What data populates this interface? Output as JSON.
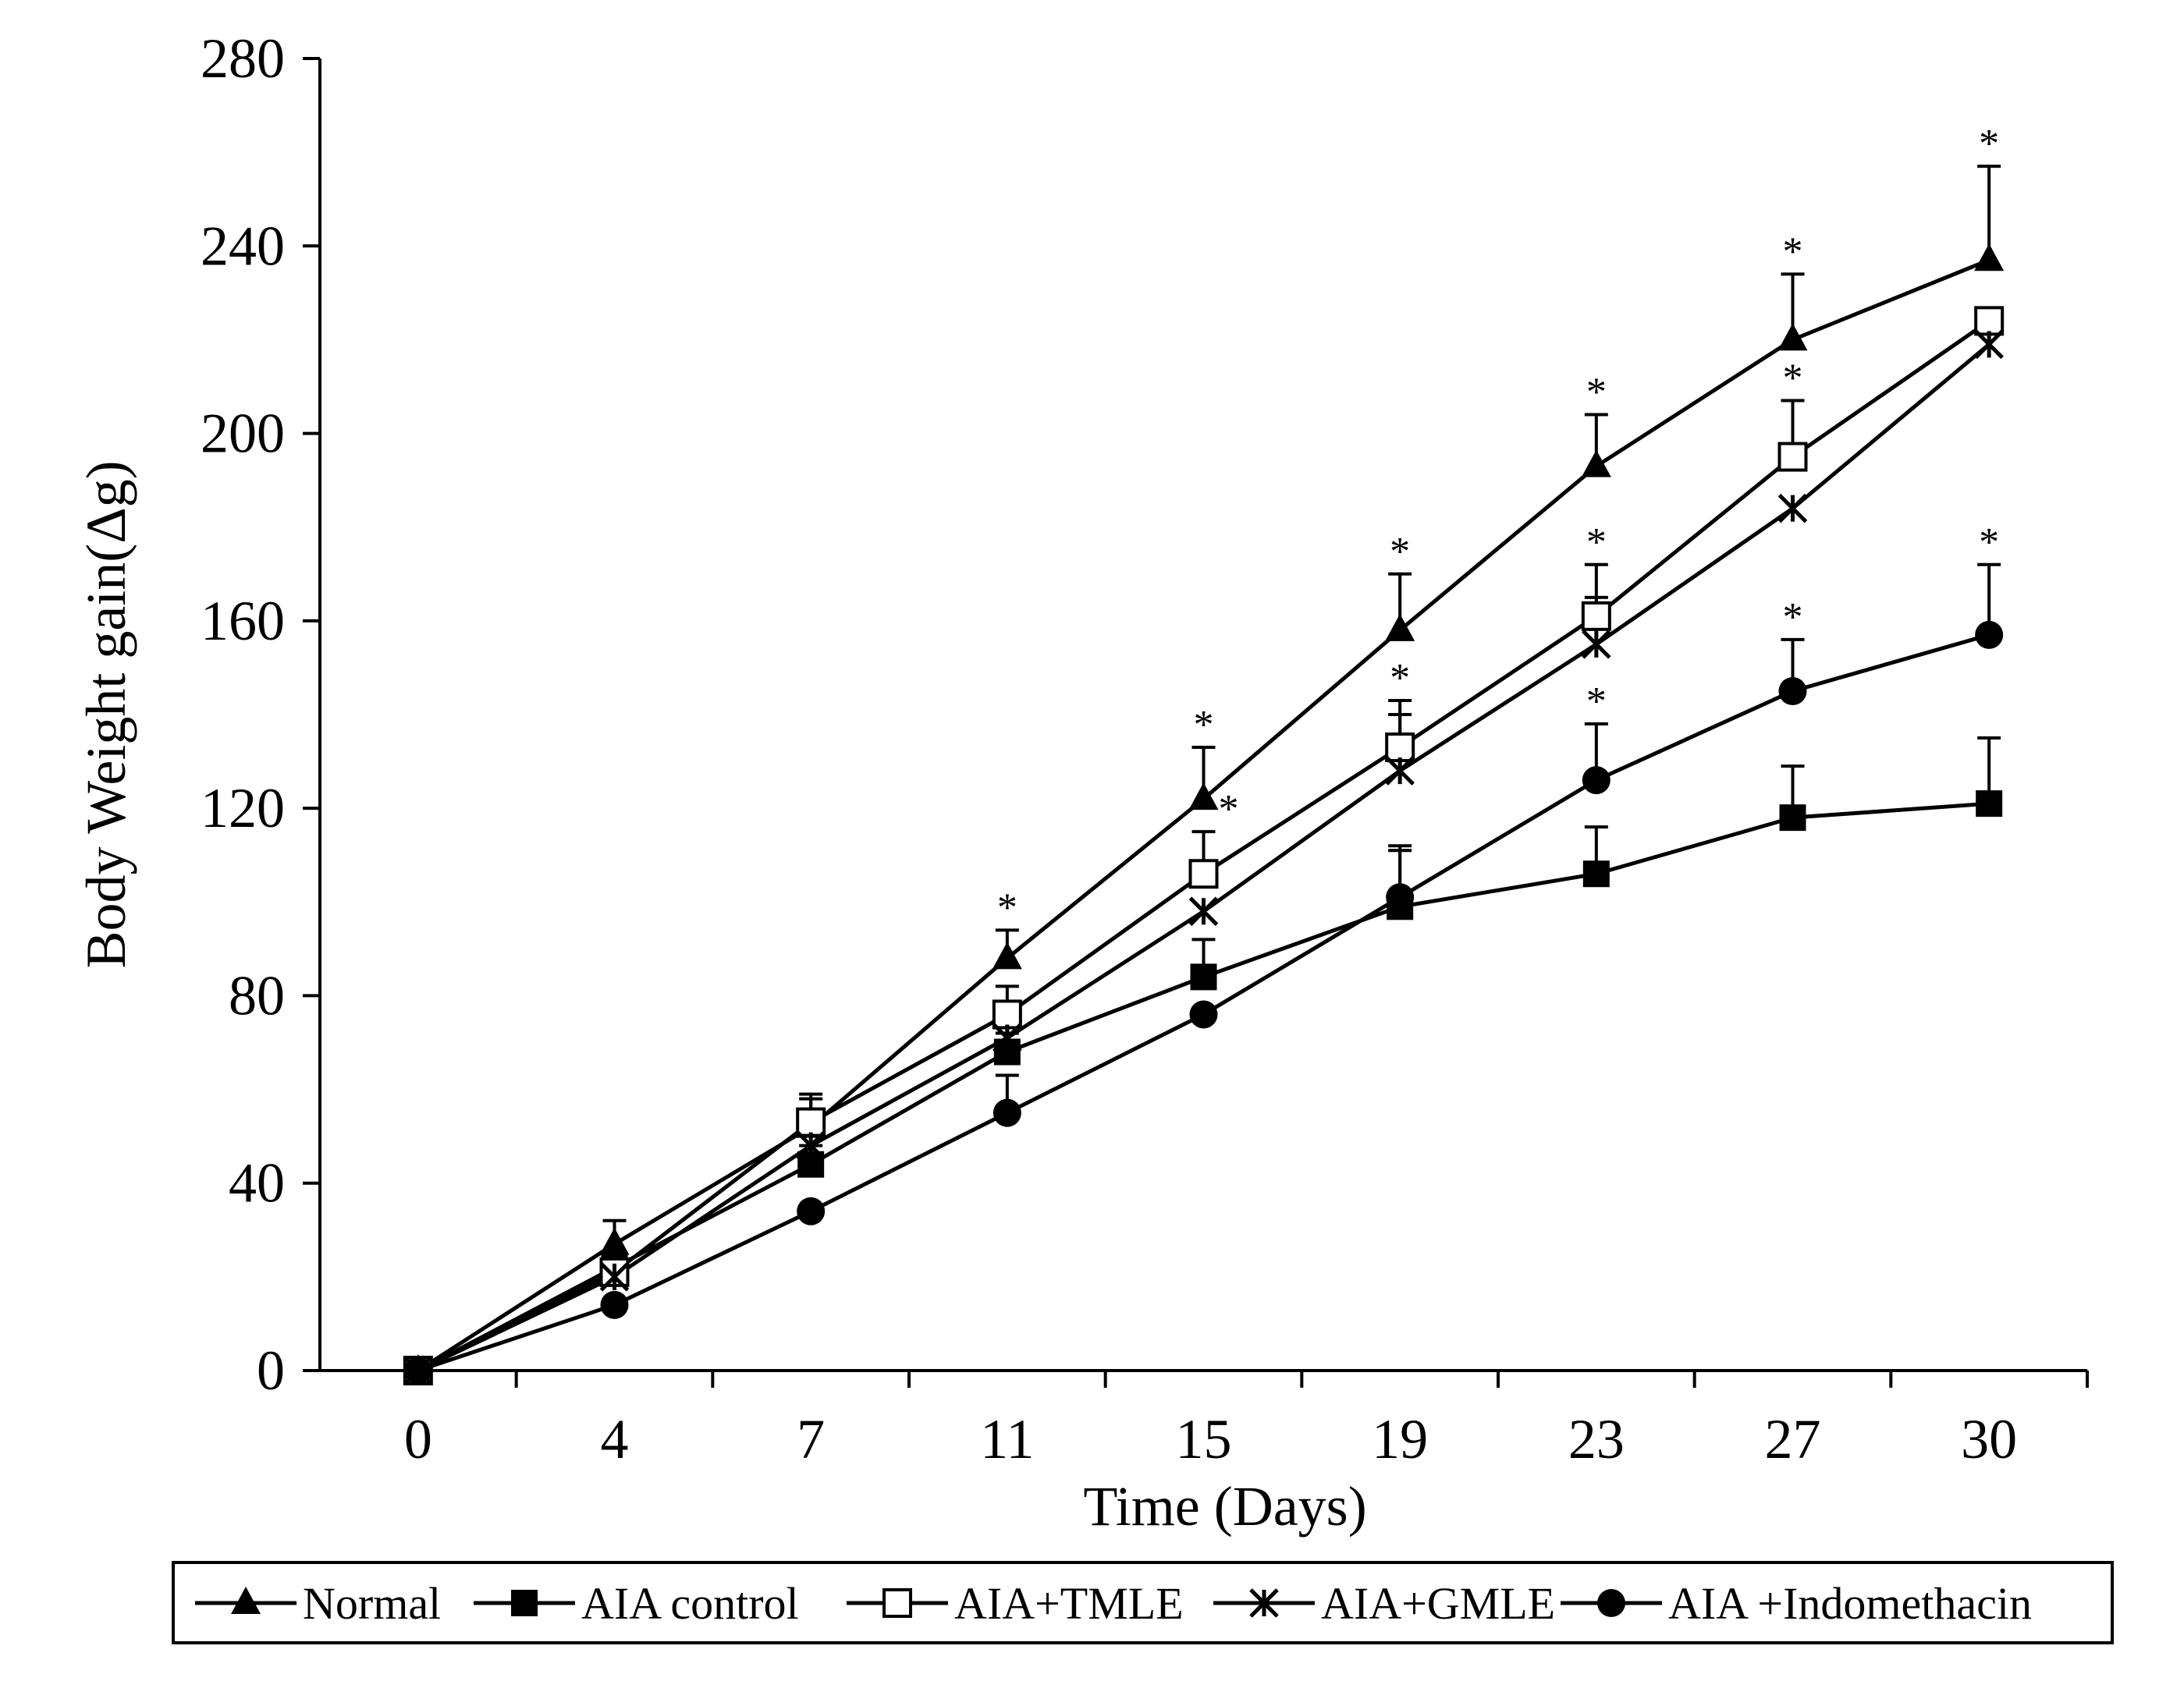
{
  "chart_data": {
    "type": "line",
    "title": "",
    "xlabel": "Time (Days)",
    "ylabel": "Body Weight gain(Δg)",
    "categories": [
      "0",
      "4",
      "7",
      "11",
      "15",
      "19",
      "23",
      "27",
      "30"
    ],
    "ylim": [
      0,
      280
    ],
    "yticks": [
      0,
      40,
      80,
      120,
      160,
      200,
      240,
      280
    ],
    "yticks_labels": [
      "0",
      "40",
      "80",
      "120",
      "160",
      "200",
      "240",
      "280"
    ],
    "grid": false,
    "legend_position": "bottom",
    "significance_marker": "*",
    "series": [
      {
        "name": "Normal",
        "marker": "filled-triangle",
        "values": [
          0,
          27,
          52,
          88,
          122,
          158,
          193,
          220,
          237
        ],
        "errors": [
          0,
          5,
          6,
          6,
          11,
          12,
          11,
          14,
          20
        ],
        "significant": [
          false,
          false,
          false,
          true,
          true,
          true,
          true,
          true,
          true
        ]
      },
      {
        "name": "AIA control",
        "marker": "filled-square",
        "values": [
          0,
          22,
          44,
          68,
          84,
          99,
          106,
          118,
          121
        ],
        "errors": [
          0,
          0,
          4,
          4,
          8,
          12,
          10,
          11,
          14
        ],
        "significant": [
          false,
          false,
          false,
          false,
          false,
          false,
          false,
          false,
          false
        ]
      },
      {
        "name": "AIA+TMLE",
        "marker": "open-square",
        "values": [
          0,
          21,
          53,
          76,
          106,
          133,
          161,
          195,
          224
        ],
        "errors": [
          0,
          0,
          6,
          6,
          9,
          10,
          11,
          12,
          0
        ],
        "significant": [
          false,
          false,
          false,
          false,
          true,
          true,
          true,
          true,
          false
        ]
      },
      {
        "name": "AIA+GMLE",
        "marker": "asterisk-x",
        "values": [
          0,
          20,
          48,
          71,
          98,
          128,
          155,
          184,
          219
        ],
        "errors": [
          0,
          0,
          4,
          0,
          0,
          12,
          10,
          0,
          0
        ],
        "significant": [
          false,
          false,
          false,
          false,
          false,
          false,
          false,
          false,
          false
        ]
      },
      {
        "name": "AIA +Indomethacin",
        "marker": "filled-circle",
        "values": [
          0,
          14,
          34,
          55,
          76,
          101,
          126,
          145,
          157
        ],
        "errors": [
          0,
          0,
          0,
          8,
          0,
          11,
          12,
          11,
          15
        ],
        "significant": [
          false,
          false,
          false,
          false,
          false,
          false,
          true,
          true,
          true
        ]
      }
    ]
  }
}
